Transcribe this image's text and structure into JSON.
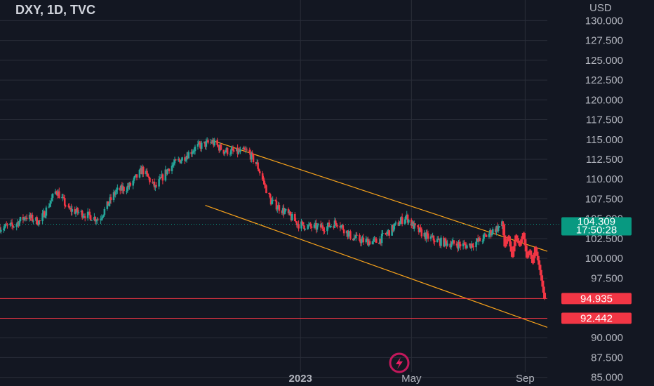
{
  "header": {
    "title": "DXY, 1D, TVC"
  },
  "price_axis": {
    "currency": "USD"
  },
  "logo": {
    "icon": "lightning-bolt-icon"
  },
  "colors": {
    "background": "#131722",
    "up": "#26a69a",
    "down": "#f23645",
    "projection": "#f23645",
    "channel": "#f7a21b",
    "level": "#f23645",
    "last_price": "#089981",
    "grid": "#2a2e39",
    "text": "#b2b5be"
  },
  "tags": {
    "last_price": "104.309",
    "countdown": "17:50:28",
    "level_1": "94.935",
    "level_2": "92.442"
  },
  "chart_data": {
    "type": "candlestick",
    "symbol": "DXY",
    "interval": "1D",
    "source": "TVC",
    "yunit": "USD",
    "ylim": [
      83.9,
      132.6
    ],
    "y_ticks": [
      "130.000",
      "127.500",
      "125.000",
      "122.500",
      "120.000",
      "117.500",
      "115.000",
      "112.500",
      "110.000",
      "107.500",
      "105.000",
      "102.500",
      "100.000",
      "97.500",
      "90.000",
      "87.500",
      "85.000"
    ],
    "x_ticks": [
      {
        "label": "2023",
        "date": "2023-01-01"
      },
      {
        "label": "May",
        "date": "2023-05-01"
      },
      {
        "label": "Sep",
        "date": "2023-09-01"
      }
    ],
    "xlim": [
      "2022-02-10",
      "2023-09-25"
    ],
    "grid": true,
    "price_path": [
      [
        "2022-02-10",
        103.9
      ],
      [
        "2022-02-24",
        104.1
      ],
      [
        "2022-03-10",
        105.3
      ],
      [
        "2022-03-25",
        104.6
      ],
      [
        "2022-04-12",
        108.6
      ],
      [
        "2022-04-25",
        106.2
      ],
      [
        "2022-05-12",
        105.6
      ],
      [
        "2022-05-28",
        104.9
      ],
      [
        "2022-06-15",
        108.4
      ],
      [
        "2022-06-30",
        109.1
      ],
      [
        "2022-07-14",
        111.2
      ],
      [
        "2022-07-28",
        108.9
      ],
      [
        "2022-08-12",
        111.5
      ],
      [
        "2022-08-25",
        112.5
      ],
      [
        "2022-09-10",
        114.0
      ],
      [
        "2022-09-27",
        114.7
      ],
      [
        "2022-10-10",
        113.6
      ],
      [
        "2022-10-25",
        113.4
      ],
      [
        "2022-11-05",
        113.5
      ],
      [
        "2022-11-15",
        111.8
      ],
      [
        "2022-11-30",
        107.2
      ],
      [
        "2022-12-15",
        105.9
      ],
      [
        "2022-12-30",
        104.3
      ],
      [
        "2023-01-15",
        103.9
      ],
      [
        "2023-01-30",
        104.0
      ],
      [
        "2023-02-10",
        104.6
      ],
      [
        "2023-02-25",
        102.7
      ],
      [
        "2023-03-10",
        102.2
      ],
      [
        "2023-03-25",
        102.1
      ],
      [
        "2023-04-10",
        103.7
      ],
      [
        "2023-04-25",
        105.3
      ],
      [
        "2023-05-05",
        103.8
      ],
      [
        "2023-05-18",
        102.7
      ],
      [
        "2023-06-01",
        102.1
      ],
      [
        "2023-06-18",
        101.8
      ],
      [
        "2023-07-01",
        101.6
      ],
      [
        "2023-07-15",
        102.3
      ],
      [
        "2023-07-28",
        103.5
      ],
      [
        "2023-08-08",
        104.3
      ]
    ],
    "last_price": 104.309,
    "projection": [
      [
        "2023-08-08",
        104.3
      ],
      [
        "2023-08-10",
        101.5
      ],
      [
        "2023-08-14",
        102.8
      ],
      [
        "2023-08-18",
        100.2
      ],
      [
        "2023-08-22",
        102.9
      ],
      [
        "2023-08-26",
        101.6
      ],
      [
        "2023-08-30",
        103.2
      ],
      [
        "2023-09-03",
        100.1
      ],
      [
        "2023-09-06",
        101.0
      ],
      [
        "2023-09-09",
        99.4
      ],
      [
        "2023-09-12",
        101.4
      ],
      [
        "2023-09-16",
        99.2
      ],
      [
        "2023-09-19",
        97.2
      ],
      [
        "2023-09-22",
        94.9
      ]
    ],
    "channel_upper": [
      [
        "2022-09-27",
        114.9
      ],
      [
        "2023-09-25",
        100.9
      ]
    ],
    "channel_lower": [
      [
        "2022-09-20",
        106.7
      ],
      [
        "2023-09-25",
        91.3
      ]
    ],
    "horizontal_levels": [
      94.935,
      92.442
    ]
  }
}
